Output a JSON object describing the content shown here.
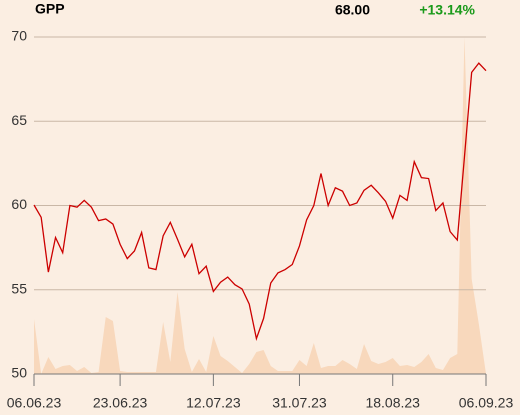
{
  "chart_data": {
    "type": "line",
    "title": "GPP",
    "last_price": "68.00",
    "change": "+13.14%",
    "categories": [
      "06.06.23",
      null,
      null,
      null,
      null,
      null,
      null,
      null,
      null,
      null,
      null,
      null,
      "23.06.23",
      null,
      null,
      null,
      null,
      null,
      null,
      null,
      null,
      null,
      null,
      null,
      null,
      "12.07.23",
      null,
      null,
      null,
      null,
      null,
      null,
      null,
      null,
      null,
      null,
      null,
      "31.07.23",
      null,
      null,
      null,
      null,
      null,
      null,
      null,
      null,
      null,
      null,
      null,
      null,
      "18.08.23",
      null,
      null,
      null,
      null,
      null,
      null,
      null,
      null,
      null,
      null,
      null,
      null,
      "06.09.23"
    ],
    "series": [
      {
        "name": "GPP",
        "color": "#cc0000",
        "values": [
          60.03,
          59.3,
          56.05,
          58.1,
          57.2,
          60.0,
          59.9,
          60.3,
          59.9,
          59.1,
          59.2,
          58.9,
          57.7,
          56.85,
          57.3,
          58.4,
          56.3,
          56.2,
          58.2,
          59.0,
          58.0,
          56.95,
          57.7,
          55.95,
          56.4,
          54.9,
          55.45,
          55.75,
          55.3,
          55.05,
          54.15,
          52.1,
          53.3,
          55.4,
          56.0,
          56.2,
          56.5,
          57.6,
          59.15,
          60.0,
          61.9,
          60.0,
          61.05,
          60.85,
          60.0,
          60.15,
          60.9,
          61.2,
          60.75,
          60.25,
          59.25,
          60.6,
          60.3,
          62.6,
          61.65,
          61.6,
          59.7,
          60.15,
          58.45,
          57.95,
          62.9,
          67.9,
          68.45,
          68.0
        ]
      },
      {
        "name": "Volume",
        "color": "#f8d8bc",
        "values": [
          55,
          0,
          17,
          5,
          8,
          9,
          3,
          7,
          1,
          2,
          57,
          53,
          3,
          2,
          2,
          2,
          2,
          2,
          52,
          12,
          82,
          25,
          2,
          15,
          2,
          38,
          18,
          13,
          7,
          1,
          10,
          22,
          24,
          8,
          3,
          3,
          3,
          14,
          8,
          31,
          6,
          8,
          8,
          14,
          10,
          5,
          30,
          13,
          10,
          12,
          16,
          8,
          9,
          7,
          12,
          20,
          6,
          4,
          16,
          20,
          337,
          95,
          50,
          0
        ]
      }
    ],
    "ylim": [
      50,
      70
    ],
    "yticks": [
      50,
      55,
      60,
      65,
      70
    ],
    "grid": true
  }
}
